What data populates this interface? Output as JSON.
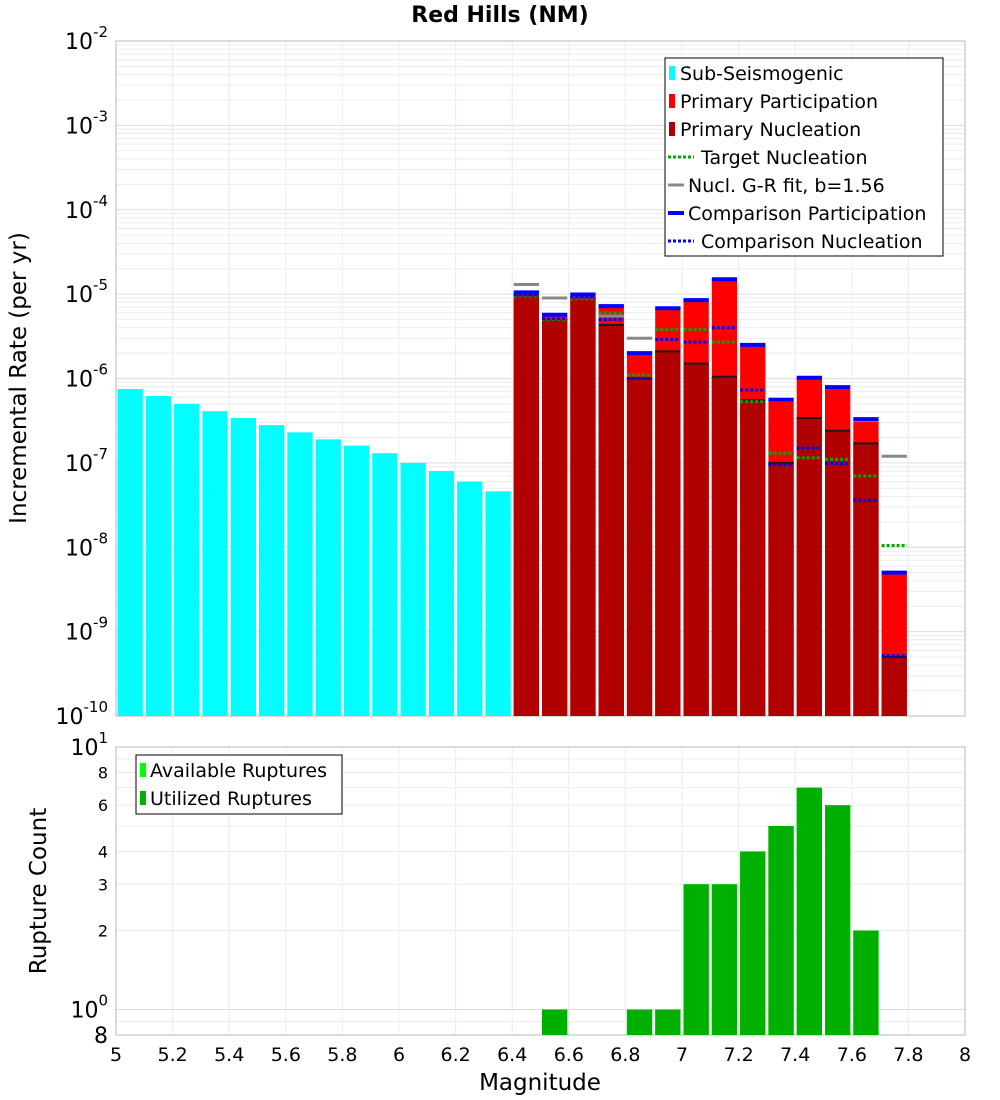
{
  "chart_data": [
    {
      "type": "bar",
      "title": "Red Hills (NM)",
      "xlabel": "",
      "ylabel": "Incremental Rate (per yr)",
      "yscale": "log",
      "xlim": [
        5,
        8
      ],
      "ylim": [
        1e-10,
        0.01
      ],
      "y_tick_labels": [
        {
          "value": 0.01,
          "base": "10",
          "exp": "-2"
        },
        {
          "value": 0.001,
          "base": "10",
          "exp": "-3"
        },
        {
          "value": 0.0001,
          "base": "10",
          "exp": "-4"
        },
        {
          "value": 1e-05,
          "base": "10",
          "exp": "-5"
        },
        {
          "value": 1e-06,
          "base": "10",
          "exp": "-6"
        },
        {
          "value": 1e-07,
          "base": "10",
          "exp": "-7"
        },
        {
          "value": 1e-08,
          "base": "10",
          "exp": "-8"
        },
        {
          "value": 1e-09,
          "base": "10",
          "exp": "-9"
        },
        {
          "value": 1e-10,
          "base": "10",
          "exp": "-10"
        }
      ],
      "bar_width": 0.1,
      "sub_seismogenic": {
        "name": "Sub-Seismogenic",
        "color": "#00ffff",
        "x": [
          5.05,
          5.15,
          5.25,
          5.35,
          5.45,
          5.55,
          5.65,
          5.75,
          5.85,
          5.95,
          6.05,
          6.15,
          6.25,
          6.35
        ],
        "values": [
          7.5e-07,
          6.2e-07,
          5e-07,
          4.1e-07,
          3.4e-07,
          2.8e-07,
          2.3e-07,
          1.9e-07,
          1.6e-07,
          1.3e-07,
          1e-07,
          8e-08,
          6e-08,
          4.6e-08
        ]
      },
      "primary_x": [
        6.45,
        6.55,
        6.65,
        6.75,
        6.85,
        6.95,
        7.05,
        7.15,
        7.25,
        7.35,
        7.45,
        7.55,
        7.65,
        7.75
      ],
      "primary_participation": {
        "name": "Primary Participation",
        "color": "#ff0000",
        "values": [
          1e-05,
          5.5e-06,
          9.5e-06,
          7e-06,
          1.9e-06,
          6.5e-06,
          8.2e-06,
          1.45e-05,
          2.4e-06,
          5.3e-07,
          9.8e-07,
          7.5e-07,
          3.1e-07,
          4.8e-09
        ]
      },
      "primary_nucleation": {
        "name": "Primary Nucleation",
        "color": "#b00000",
        "values": [
          1e-05,
          5e-06,
          9e-06,
          4.3e-06,
          1e-06,
          2.1e-06,
          1.5e-06,
          1.05e-06,
          5.5e-07,
          1e-07,
          3.4e-07,
          2.4e-07,
          1.7e-07,
          5e-10
        ]
      },
      "target_nucleation": {
        "name": "Target Nucleation",
        "color": "#00aa00",
        "x": [
          6.45,
          6.55,
          6.65,
          6.75,
          6.85,
          6.95,
          7.05,
          7.15,
          7.25,
          7.35,
          7.45,
          7.55,
          7.65,
          7.75
        ],
        "values": [
          9.5e-06,
          5e-06,
          8.8e-06,
          6e-06,
          1.1e-06,
          3.8e-06,
          3.8e-06,
          2.7e-06,
          5.3e-07,
          1.3e-07,
          1.15e-07,
          1.1e-07,
          7e-08,
          1.05e-08
        ]
      },
      "gr_fit": {
        "name": "Nucl. G-R fit, b=1.56",
        "color": "#888888",
        "x": [
          6.45,
          6.55,
          6.75,
          6.85,
          7.75
        ],
        "values": [
          1.3e-05,
          9e-06,
          5.5e-06,
          3e-06,
          1.2e-07
        ]
      },
      "comparison_participation": {
        "name": "Comparison Participation",
        "color": "#0000ff",
        "x": [
          6.45,
          6.55,
          6.65,
          6.75,
          6.85,
          6.95,
          7.05,
          7.15,
          7.25,
          7.35,
          7.45,
          7.55,
          7.65,
          7.75
        ],
        "values": [
          1.05e-05,
          5.7e-06,
          9.9e-06,
          7.2e-06,
          2e-06,
          6.8e-06,
          8.5e-06,
          1.5e-05,
          2.5e-06,
          5.6e-07,
          1.02e-06,
          7.9e-07,
          3.3e-07,
          5e-09
        ]
      },
      "comparison_nucleation": {
        "name": "Comparison Nucleation",
        "color": "#0000ff",
        "x": [
          6.45,
          6.55,
          6.65,
          6.75,
          6.85,
          6.95,
          7.05,
          7.15,
          7.25,
          7.35,
          7.45,
          7.55,
          7.65,
          7.75
        ],
        "values": [
          9.8e-06,
          5.1e-06,
          9.2e-06,
          5e-06,
          1e-06,
          2.9e-06,
          2.7e-06,
          4e-06,
          7.3e-07,
          9.5e-08,
          1.5e-07,
          9.8e-08,
          3.6e-08,
          5.2e-10
        ]
      },
      "legend_position": "top-right"
    },
    {
      "type": "bar",
      "title": "",
      "xlabel": "Magnitude",
      "ylabel": "Rupture Count",
      "yscale": "log",
      "xlim": [
        5,
        8
      ],
      "ylim": [
        0.8,
        10
      ],
      "x_ticks": [
        "5",
        "5.2",
        "5.4",
        "5.6",
        "5.8",
        "6",
        "6.2",
        "6.4",
        "6.6",
        "6.8",
        "7",
        "7.2",
        "7.4",
        "7.6",
        "7.8",
        "8"
      ],
      "y_tick_labels": [
        {
          "value": 10,
          "base": "10",
          "exp": "1"
        },
        {
          "value": 8,
          "label": "8"
        },
        {
          "value": 6,
          "label": "6"
        },
        {
          "value": 4,
          "label": "4"
        },
        {
          "value": 3,
          "label": "3"
        },
        {
          "value": 2,
          "label": "2"
        },
        {
          "value": 1,
          "base": "10",
          "exp": "0"
        },
        {
          "value": 0.8,
          "label": "8"
        }
      ],
      "bar_width": 0.1,
      "available_ruptures": {
        "name": "Available Ruptures",
        "color": "#00ff00",
        "x": [
          6.55,
          6.85,
          6.95,
          7.05,
          7.15,
          7.25,
          7.35,
          7.45,
          7.55,
          7.65
        ],
        "values": [
          1,
          1,
          1,
          3,
          3,
          4,
          5,
          7,
          6,
          2
        ]
      },
      "utilized_ruptures": {
        "name": "Utilized Ruptures",
        "color": "#00b000",
        "x": [
          6.55,
          6.85,
          6.95,
          7.05,
          7.15,
          7.25,
          7.35,
          7.45,
          7.55,
          7.65
        ],
        "values": [
          1,
          1,
          1,
          3,
          3,
          4,
          5,
          7,
          6,
          2
        ]
      },
      "legend_position": "top-left"
    }
  ]
}
